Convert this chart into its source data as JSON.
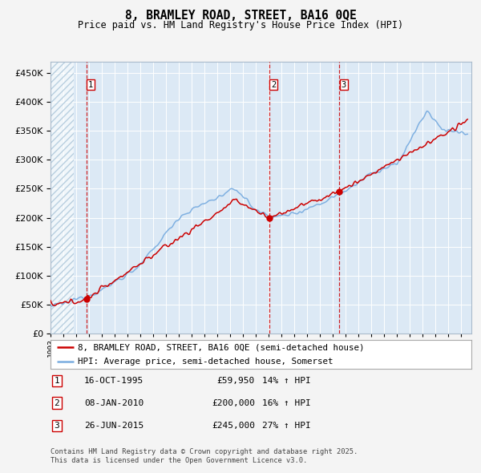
{
  "title": "8, BRAMLEY ROAD, STREET, BA16 0QE",
  "subtitle": "Price paid vs. HM Land Registry's House Price Index (HPI)",
  "legend_line1": "8, BRAMLEY ROAD, STREET, BA16 0QE (semi-detached house)",
  "legend_line2": "HPI: Average price, semi-detached house, Somerset",
  "footnote1": "Contains HM Land Registry data © Crown copyright and database right 2025.",
  "footnote2": "This data is licensed under the Open Government Licence v3.0.",
  "sale_events": [
    {
      "num": 1,
      "date_label": "16-OCT-1995",
      "date_x": 1995.79,
      "price": 59950,
      "hpi_note": "14% ↑ HPI"
    },
    {
      "num": 2,
      "date_label": "08-JAN-2010",
      "date_x": 2010.03,
      "price": 200000,
      "hpi_note": "16% ↑ HPI"
    },
    {
      "num": 3,
      "date_label": "26-JUN-2015",
      "date_x": 2015.49,
      "price": 245000,
      "hpi_note": "27% ↑ HPI"
    }
  ],
  "ylim": [
    0,
    470000
  ],
  "xlim_start": 1993.0,
  "xlim_end": 2025.8,
  "fig_bg_color": "#f4f4f4",
  "bg_color": "#dce9f5",
  "hatch_color": "#b8cfe0",
  "red_line_color": "#cc0000",
  "blue_line_color": "#7aade0",
  "vline_color": "#cc0000",
  "grid_color": "#ffffff",
  "title_color": "#000000",
  "tick_label_color": "#000000",
  "sale_marker_color": "#cc0000",
  "legend_border_color": "#aaaaaa",
  "sale_box_border_color": "#cc0000"
}
